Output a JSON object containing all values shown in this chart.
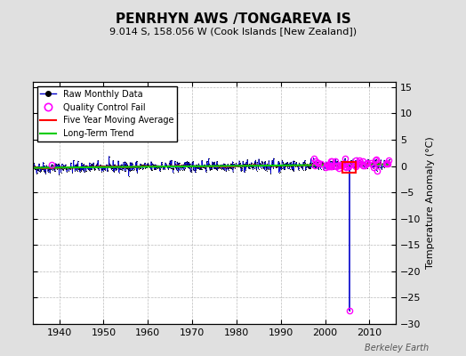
{
  "title": "PENRHYN AWS /TONGAREVA IS",
  "subtitle": "9.014 S, 158.056 W (Cook Islands [New Zealand])",
  "ylabel": "Temperature Anomaly (°C)",
  "watermark": "Berkeley Earth",
  "xlim": [
    1934,
    2016
  ],
  "ylim": [
    -30,
    16
  ],
  "yticks": [
    -30,
    -25,
    -20,
    -15,
    -10,
    -5,
    0,
    5,
    10,
    15
  ],
  "xticks": [
    1940,
    1950,
    1960,
    1970,
    1980,
    1990,
    2000,
    2010
  ],
  "bg_color": "#e0e0e0",
  "plot_bg_color": "#ffffff",
  "raw_color": "#0000cc",
  "raw_dot_color": "#000000",
  "qc_fail_color": "#ff00ff",
  "moving_avg_color": "#ff0000",
  "trend_color": "#00cc00",
  "spike_x": 2005.5,
  "spike_y_bottom": -27.5,
  "red_rect_x1": 2003.8,
  "red_rect_x2": 2006.8,
  "red_rect_y1": -1.3,
  "red_rect_y2": 0.7,
  "noise_std": 0.5,
  "trend_slope": 0.008,
  "seed": 42
}
